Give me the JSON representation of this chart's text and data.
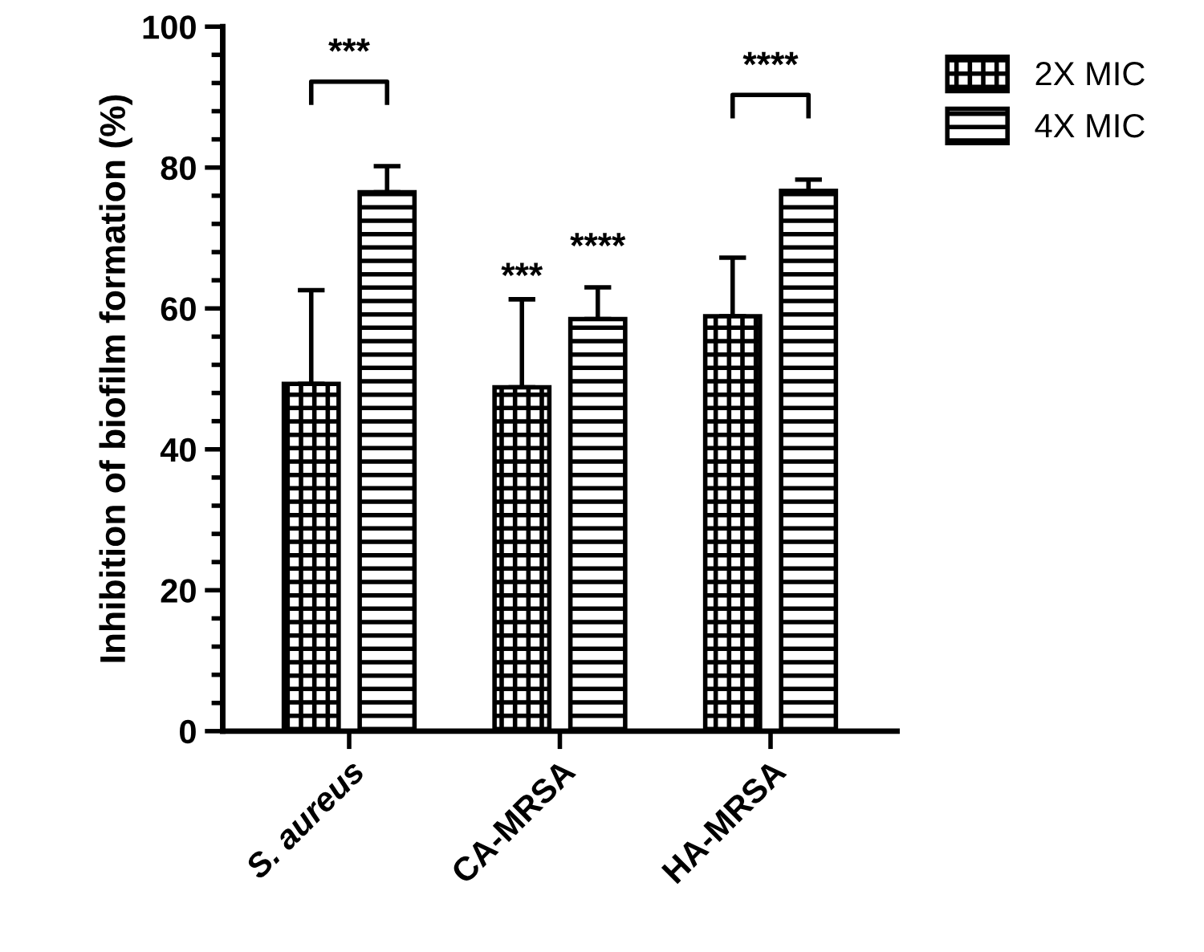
{
  "chart_data": {
    "type": "bar",
    "ylabel": "Inhibition of biofilm formation (%)",
    "categories": [
      "S. aureus",
      "CA-MRSA",
      "HA-MRSA"
    ],
    "series": [
      {
        "name": "2X MIC",
        "color": "#000000",
        "values": [
          49.3,
          48.8,
          58.9
        ],
        "errors": [
          [
            49.3,
            62.6
          ],
          [
            48.8,
            61.3
          ],
          [
            58.9,
            67.2
          ]
        ],
        "value_labels": [
          null,
          "***",
          null
        ]
      },
      {
        "name": "4X MIC",
        "color": "#000000",
        "values": [
          76.5,
          58.5,
          76.7
        ],
        "errors": [
          [
            76.5,
            80.2
          ],
          [
            58.5,
            63.0
          ],
          [
            76.7,
            78.3
          ]
        ],
        "value_labels": [
          null,
          "****",
          null
        ]
      }
    ],
    "ylim": [
      0,
      100
    ],
    "yticks": [
      0,
      20,
      40,
      60,
      80,
      100
    ],
    "annotations": [
      "***",
      "****"
    ],
    "legend": "top right",
    "grid": false
  }
}
